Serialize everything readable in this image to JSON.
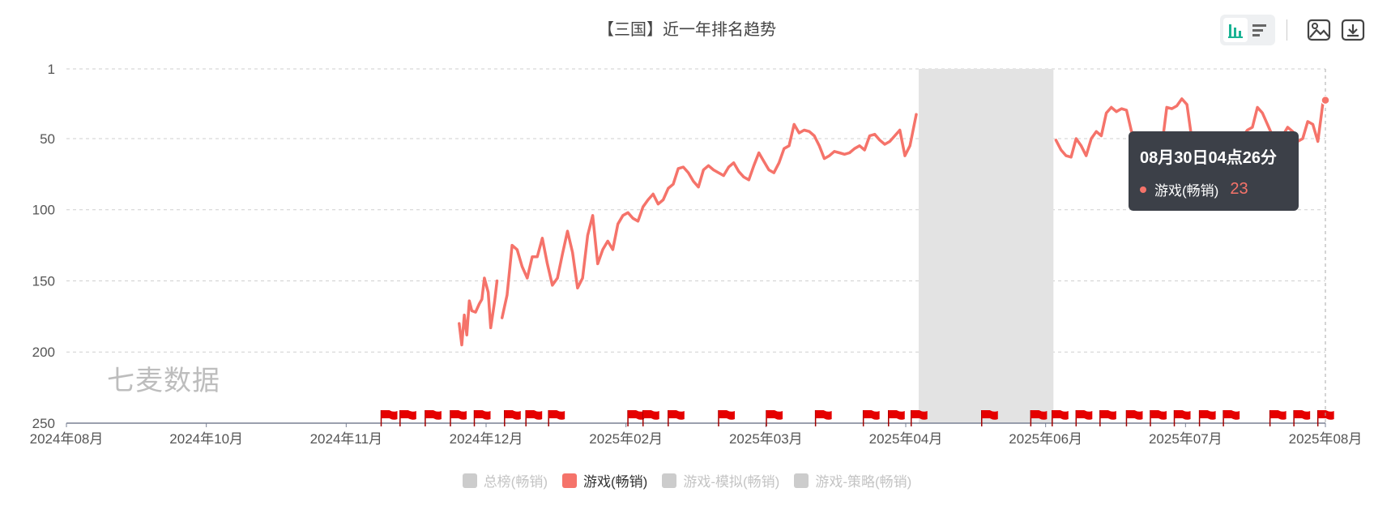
{
  "title": "【三国】近一年排名趋势",
  "watermark": "七麦数据",
  "toolbar": {
    "buttons": [
      {
        "name": "bar-chart-icon",
        "active": true
      },
      {
        "name": "list-icon",
        "active": false
      },
      {
        "name": "image-export-icon"
      },
      {
        "name": "download-icon"
      }
    ]
  },
  "tooltip": {
    "time": "08月30日04点26分",
    "series": "游戏(畅销)",
    "value": "23",
    "color": "#f5736a"
  },
  "legend": [
    {
      "label": "总榜(畅销)",
      "color": "#cccccc",
      "active": false
    },
    {
      "label": "游戏(畅销)",
      "color": "#f5736a",
      "active": true
    },
    {
      "label": "游戏-模拟(畅销)",
      "color": "#cccccc",
      "active": false
    },
    {
      "label": "游戏-策略(畅销)",
      "color": "#cccccc",
      "active": false
    }
  ],
  "chart_data": {
    "type": "line",
    "y_axis": {
      "ticks": [
        1,
        50,
        100,
        150,
        200,
        250
      ],
      "range": [
        1,
        250
      ],
      "inverted": true
    },
    "x_axis": {
      "ticks": [
        "2024年08月",
        "2024年10月",
        "2024年11月",
        "2024年12月",
        "2025年02月",
        "2025年03月",
        "2025年04月",
        "2025年06月",
        "2025年07月",
        "2025年08月"
      ],
      "range": [
        0,
        100
      ]
    },
    "grid": true,
    "grid_style": "dashed",
    "shaded_region": {
      "x": [
        67.7,
        78.4
      ]
    },
    "line_color": "#f5736a",
    "flag_color": "#e50000",
    "flags_x": [
      25.0,
      26.5,
      28.5,
      30.5,
      32.4,
      34.8,
      36.5,
      38.3,
      44.6,
      45.8,
      47.8,
      51.8,
      55.6,
      59.5,
      63.3,
      65.3,
      67.1,
      72.7,
      76.6,
      78.3,
      80.2,
      82.1,
      84.2,
      86.1,
      88.0,
      90.0,
      91.9,
      95.6,
      97.5,
      99.4
    ],
    "series": [
      {
        "name": "游戏(畅销)",
        "segments": [
          {
            "x": [
              31.2,
              31.4,
              31.6,
              31.8,
              32.0,
              32.2,
              32.5,
              32.8,
              33.0,
              33.2,
              33.5,
              33.7,
              34.0,
              34.2
            ],
            "y": [
              180,
              195,
              174,
              188,
              164,
              171,
              172,
              166,
              163,
              148,
              158,
              183,
              165,
              150
            ]
          },
          {
            "x": [
              34.6,
              35.0,
              35.4,
              35.8,
              36.2,
              36.6,
              37.0,
              37.4,
              37.8,
              38.2,
              38.6,
              39.0,
              39.4,
              39.8,
              40.2,
              40.6,
              41.0,
              41.4,
              41.8,
              42.2,
              42.6,
              43.0,
              43.4,
              43.8,
              44.2,
              44.6,
              45.0,
              45.4,
              45.8,
              46.2,
              46.6,
              47.0,
              47.4,
              47.8,
              48.2,
              48.6,
              49.0,
              49.4,
              49.8,
              50.2,
              50.6,
              51.0,
              51.4,
              51.8,
              52.2,
              52.6,
              53.0,
              53.4,
              53.8,
              54.2,
              54.6,
              55.0,
              55.4,
              55.8,
              56.2,
              56.6,
              57.0,
              57.4,
              57.8,
              58.2,
              58.6,
              59.0,
              59.4,
              59.8,
              60.2,
              60.6,
              61.0,
              61.4,
              61.8,
              62.2,
              62.6,
              63.0,
              63.4,
              63.8,
              64.2,
              64.6,
              65.0,
              65.4,
              65.8,
              66.2,
              66.6,
              67.0,
              67.5
            ],
            "y": [
              176,
              160,
              125,
              128,
              140,
              148,
              133,
              133,
              120,
              138,
              153,
              148,
              131,
              115,
              130,
              155,
              148,
              118,
              104,
              138,
              128,
              122,
              128,
              110,
              104,
              102,
              106,
              108,
              98,
              93,
              89,
              96,
              93,
              85,
              82,
              71,
              70,
              74,
              80,
              84,
              72,
              69,
              72,
              74,
              76,
              70,
              67,
              73,
              77,
              79,
              69,
              60,
              66,
              72,
              74,
              67,
              57,
              55,
              40,
              46,
              44,
              45,
              48,
              55,
              64,
              62,
              59,
              60,
              61,
              60,
              57,
              55,
              58,
              48,
              47,
              51,
              54,
              52,
              48,
              44,
              62,
              55,
              33
            ]
          },
          {
            "x": [
              78.6,
              79.0,
              79.4,
              79.8,
              80.2,
              80.6,
              81.0,
              81.4,
              81.8,
              82.2,
              82.6,
              83.0,
              83.4,
              83.8,
              84.2,
              84.6,
              85.0,
              85.4,
              85.8,
              86.2,
              86.6,
              87.0,
              87.4,
              87.8,
              88.2,
              88.6,
              89.0,
              89.4,
              89.8,
              90.2,
              90.6,
              91.0,
              91.4,
              91.8,
              92.2,
              92.6,
              93.0,
              93.4,
              93.8,
              94.2,
              94.6,
              95.0,
              95.4,
              95.8,
              96.2,
              96.6,
              97.0,
              97.4,
              97.8,
              98.2,
              98.6,
              99.0,
              99.4,
              99.8,
              100.0
            ],
            "y": [
              51,
              58,
              62,
              63,
              50,
              55,
              62,
              50,
              45,
              48,
              32,
              28,
              31,
              29,
              30,
              45,
              50,
              55,
              52,
              48,
              52,
              56,
              28,
              29,
              27,
              22,
              26,
              51,
              48,
              47,
              54,
              58,
              55,
              52,
              48,
              50,
              46,
              49,
              44,
              42,
              28,
              32,
              40,
              48,
              55,
              48,
              42,
              45,
              52,
              50,
              38,
              40,
              52,
              25,
              23
            ]
          }
        ]
      }
    ]
  }
}
